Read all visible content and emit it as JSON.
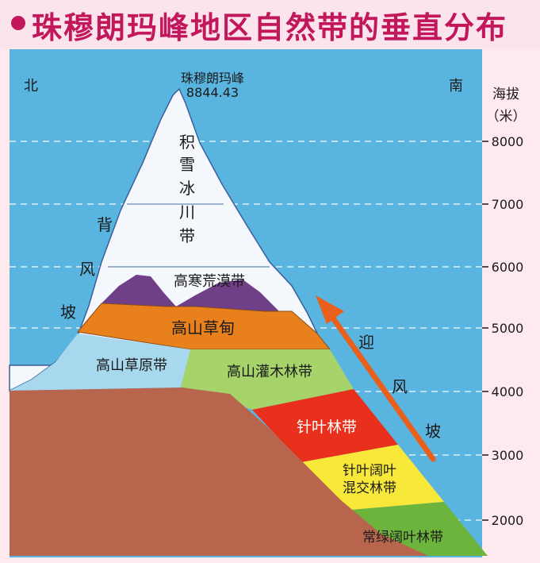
{
  "title": "珠穆朗玛峰地区自然带的垂直分布",
  "peak": {
    "name": "珠穆朗玛峰",
    "height": "8844.43"
  },
  "directions": {
    "north": "北",
    "south": "南"
  },
  "axis": {
    "label_line1": "海拔",
    "label_line2": "（米）",
    "ticks": [
      "8000",
      "7000",
      "6000",
      "5000",
      "4000",
      "3000",
      "2000"
    ]
  },
  "slopes": {
    "leeward_chars": [
      "背",
      "风",
      "坡"
    ],
    "windward_chars": [
      "迎",
      "风",
      "坡"
    ]
  },
  "zones": {
    "snow_chars": [
      "积",
      "雪",
      "冰",
      "川",
      "带"
    ],
    "alpine_desert": "高寒荒漠带",
    "alpine_meadow": "高山草甸",
    "alpine_grassland": "高山草原带",
    "alpine_shrub": "高山灌木林带",
    "coniferous": "针叶林带",
    "mixed_line1": "针叶阔叶",
    "mixed_line2": "混交林带",
    "evergreen": "常绿阔叶林带"
  },
  "colors": {
    "title": "#c2185b",
    "sky": "#5ab4e0",
    "snow": "#f4f7fc",
    "desert": "#6f3f88",
    "meadow": "#e8801c",
    "grassland": "#a8d8ee",
    "shrub": "#a6d36a",
    "coniferous": "#e8301c",
    "mixed": "#f7e83a",
    "evergreen": "#6cb43c",
    "ground": "#b8654e"
  }
}
